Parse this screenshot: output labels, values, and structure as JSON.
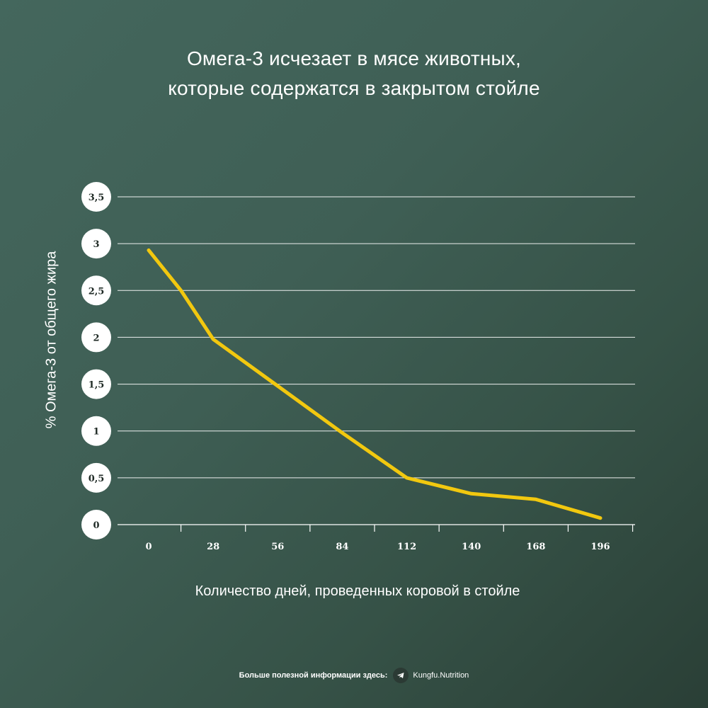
{
  "chart_data": {
    "type": "line",
    "title": [
      "Омега-3 исчезает в мясе животных,",
      "которые содержатся в закрытом стойле"
    ],
    "xlabel": "Количество дней, проведенных коровой в стойле",
    "ylabel": "% Омега-3 от общего жира",
    "x_ticks": [
      "0",
      "28",
      "56",
      "84",
      "112",
      "140",
      "168",
      "196"
    ],
    "y_ticks": [
      "0",
      "0,5",
      "1",
      "1,5",
      "2",
      "2,5",
      "3",
      "3,5"
    ],
    "xlim": [
      0,
      196
    ],
    "ylim": [
      0,
      3.5
    ],
    "grid": "horizontal",
    "line_color": "#f2c80f",
    "series": [
      {
        "x": [
          0,
          14,
          28,
          56,
          84,
          112,
          140,
          168,
          196
        ],
        "values": [
          2.93,
          2.5,
          1.98,
          1.48,
          0.98,
          0.5,
          0.33,
          0.27,
          0.07
        ]
      }
    ]
  },
  "footer": {
    "text": "Больше полезной информации здесь:",
    "icon": "telegram-icon",
    "brand": "Kungfu.Nutrition"
  }
}
